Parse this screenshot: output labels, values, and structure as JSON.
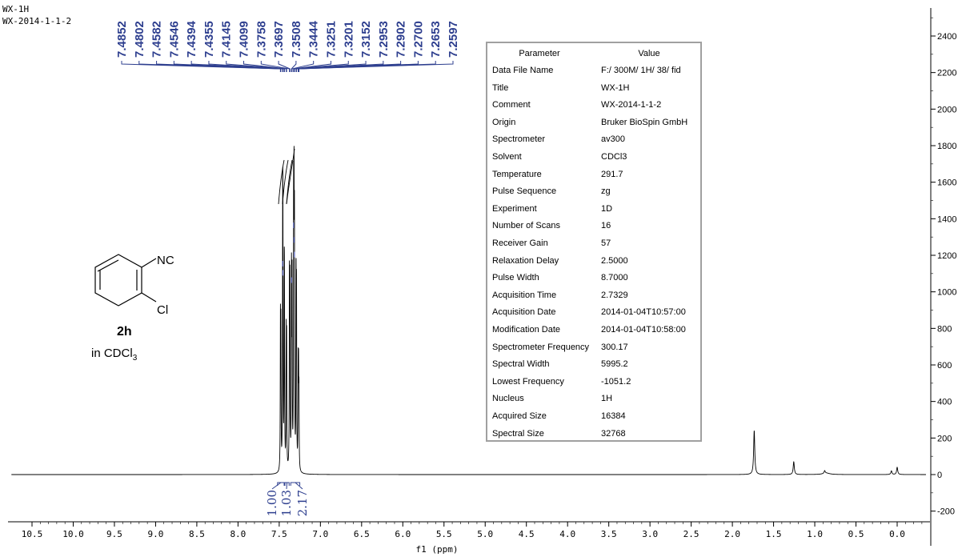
{
  "header": {
    "line1": "WX-1H",
    "line2": "WX-2014-1-1-2"
  },
  "compound": {
    "id": "2h",
    "solvent_prefix": "in CDCl",
    "solvent_sub": "3",
    "substituent_top": "NC",
    "substituent_bottom": "Cl"
  },
  "params": {
    "header_key": "Parameter",
    "header_value": "Value",
    "rows": [
      {
        "k": "Data File Name",
        "v": "F:/ 300M/ 1H/ 38/ fid"
      },
      {
        "k": "Title",
        "v": "WX-1H"
      },
      {
        "k": "Comment",
        "v": "WX-2014-1-1-2"
      },
      {
        "k": "Origin",
        "v": "Bruker BioSpin GmbH"
      },
      {
        "k": "Spectrometer",
        "v": "av300"
      },
      {
        "k": "Solvent",
        "v": "CDCl3"
      },
      {
        "k": "Temperature",
        "v": "291.7"
      },
      {
        "k": "Pulse Sequence",
        "v": "zg"
      },
      {
        "k": "Experiment",
        "v": "1D"
      },
      {
        "k": "Number of Scans",
        "v": "16"
      },
      {
        "k": "Receiver Gain",
        "v": "57"
      },
      {
        "k": "Relaxation Delay",
        "v": "2.5000"
      },
      {
        "k": "Pulse Width",
        "v": "8.7000"
      },
      {
        "k": "Acquisition Time",
        "v": "2.7329"
      },
      {
        "k": "Acquisition Date",
        "v": "2014-01-04T10:57:00"
      },
      {
        "k": "Modification Date",
        "v": "2014-01-04T10:58:00"
      },
      {
        "k": "Spectrometer Frequency",
        "v": "300.17"
      },
      {
        "k": "Spectral Width",
        "v": "5995.2"
      },
      {
        "k": "Lowest Frequency",
        "v": "-1051.2"
      },
      {
        "k": "Nucleus",
        "v": "1H"
      },
      {
        "k": "Acquired Size",
        "v": "16384"
      },
      {
        "k": "Spectral Size",
        "v": "32768"
      }
    ]
  },
  "chart_data": {
    "type": "line",
    "xlabel": "f1 (ppm)",
    "ylabel": "",
    "xlim": [
      10.8,
      -0.4
    ],
    "ylim": [
      -230,
      2520
    ],
    "x_reversed": true,
    "grid": false,
    "x_ticks": [
      "10.5",
      "10.0",
      "9.5",
      "9.0",
      "8.5",
      "8.0",
      "7.5",
      "7.0",
      "6.5",
      "6.0",
      "5.5",
      "5.0",
      "4.5",
      "4.0",
      "3.5",
      "3.0",
      "2.5",
      "2.0",
      "1.5",
      "1.0",
      "0.5",
      "0.0"
    ],
    "x_tick_values": [
      10.5,
      10.0,
      9.5,
      9.0,
      8.5,
      8.0,
      7.5,
      7.0,
      6.5,
      6.0,
      5.5,
      5.0,
      4.5,
      4.0,
      3.5,
      3.0,
      2.5,
      2.0,
      1.5,
      1.0,
      0.5,
      0.0
    ],
    "y_ticks": [
      "-200",
      "0",
      "200",
      "400",
      "600",
      "800",
      "1000",
      "1200",
      "1400",
      "1600",
      "1800",
      "2000",
      "2200",
      "2400"
    ],
    "y_tick_values": [
      -200,
      0,
      200,
      400,
      600,
      800,
      1000,
      1200,
      1400,
      1600,
      1800,
      2000,
      2200,
      2400
    ],
    "peak_labels": [
      "7.4852",
      "7.4802",
      "7.4582",
      "7.4546",
      "7.4394",
      "7.4355",
      "7.4145",
      "7.4099",
      "7.3758",
      "7.3697",
      "7.3508",
      "7.3444",
      "7.3251",
      "7.3201",
      "7.3152",
      "7.2953",
      "7.2902",
      "7.2700",
      "7.2653",
      "7.2597"
    ],
    "integrals": [
      {
        "label": "1.00",
        "from": 7.52,
        "to": 7.44
      },
      {
        "label": "1.03",
        "from": 7.43,
        "to": 7.38
      },
      {
        "label": "2.17",
        "from": 7.36,
        "to": 7.25
      }
    ],
    "peaks": [
      {
        "x": 7.485,
        "y": 760
      },
      {
        "x": 7.48,
        "y": 720
      },
      {
        "x": 7.458,
        "y": 1130
      },
      {
        "x": 7.455,
        "y": 1080
      },
      {
        "x": 7.439,
        "y": 820
      },
      {
        "x": 7.436,
        "y": 780
      },
      {
        "x": 7.415,
        "y": 680
      },
      {
        "x": 7.41,
        "y": 640
      },
      {
        "x": 7.376,
        "y": 1000
      },
      {
        "x": 7.37,
        "y": 950
      },
      {
        "x": 7.351,
        "y": 1040
      },
      {
        "x": 7.344,
        "y": 1000
      },
      {
        "x": 7.325,
        "y": 1340
      },
      {
        "x": 7.32,
        "y": 1260
      },
      {
        "x": 7.315,
        "y": 1180
      },
      {
        "x": 7.295,
        "y": 950
      },
      {
        "x": 7.29,
        "y": 880
      },
      {
        "x": 7.27,
        "y": 540
      },
      {
        "x": 7.265,
        "y": 480
      },
      {
        "x": 7.26,
        "y": 380
      },
      {
        "x": 1.735,
        "y": 240
      },
      {
        "x": 1.255,
        "y": 70
      },
      {
        "x": 0.88,
        "y": 15
      },
      {
        "x": 0.07,
        "y": 20
      },
      {
        "x": 0.0,
        "y": 40
      }
    ]
  }
}
